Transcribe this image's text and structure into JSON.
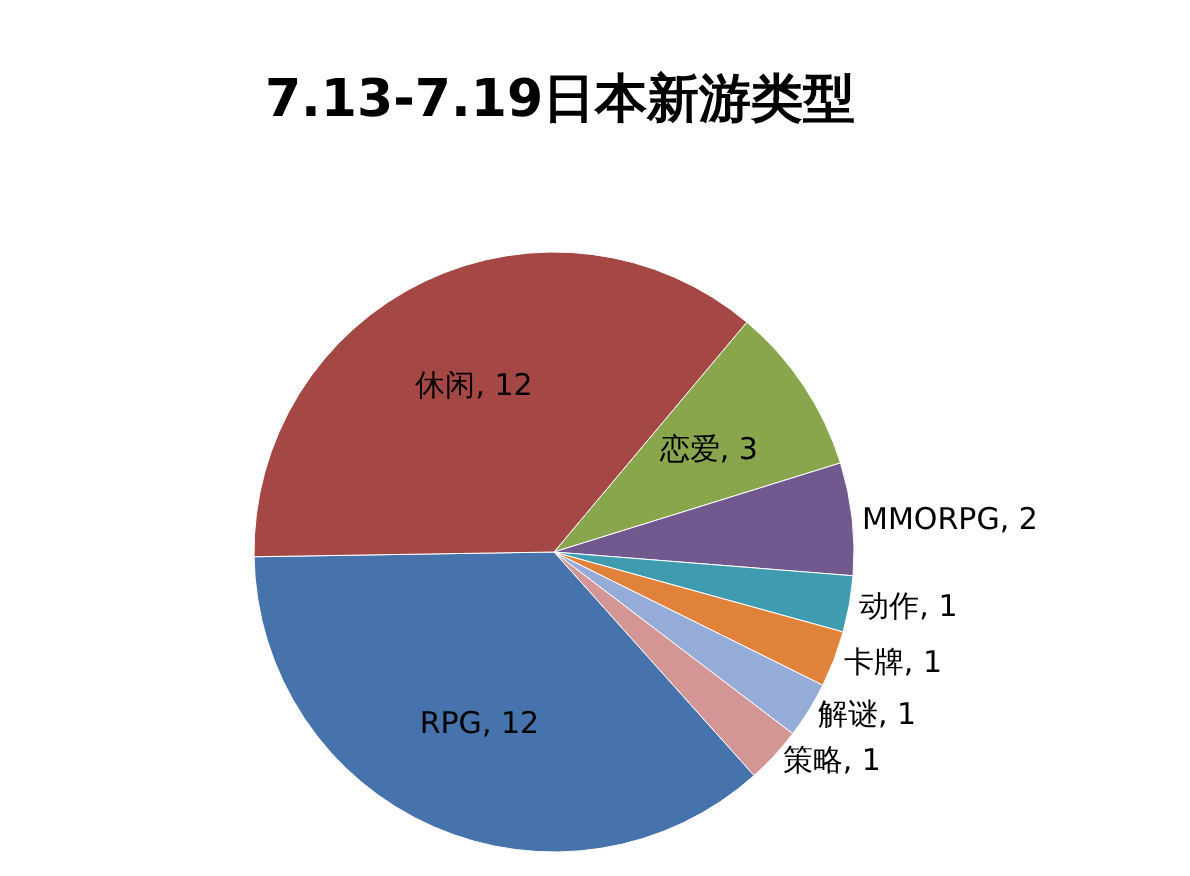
{
  "chart_data": {
    "type": "pie",
    "title": "7.13-7.19日本新游类型",
    "categories": [
      "恋爱",
      "MMORPG",
      "动作",
      "卡牌",
      "解谜",
      "策略",
      "RPG",
      "休闲"
    ],
    "values": [
      3,
      2,
      1,
      1,
      1,
      1,
      12,
      12
    ],
    "colors": [
      "#8aa64c",
      "#71588f",
      "#3e9bb0",
      "#e0823a",
      "#95acd9",
      "#d49694",
      "#4673ab",
      "#a54745"
    ],
    "value_labels": [
      ", 3",
      ", 2",
      ", 1",
      ", 1",
      ", 1",
      ", 1",
      ", 12",
      ", 12"
    ],
    "legend": false
  }
}
